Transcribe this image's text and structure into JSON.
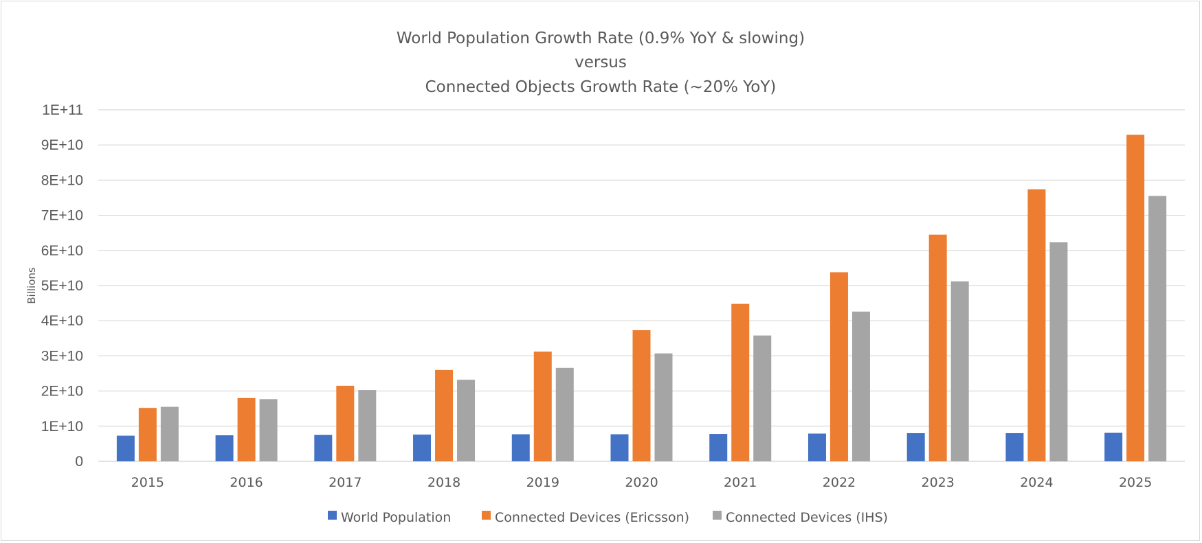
{
  "chart_data": {
    "type": "bar",
    "title_lines": [
      "World Population Growth Rate (0.9% YoY & slowing)",
      "versus",
      "Connected Objects Growth Rate (~20% YoY)"
    ],
    "xlabel": "",
    "ylabel": "Billions",
    "ylim": [
      0,
      100000000000
    ],
    "yticks": [
      0,
      10000000000,
      20000000000,
      30000000000,
      40000000000,
      50000000000,
      60000000000,
      70000000000,
      80000000000,
      90000000000,
      100000000000
    ],
    "ytick_labels": [
      "0",
      "1E+10",
      "2E+10",
      "3E+10",
      "4E+10",
      "5E+10",
      "6E+10",
      "7E+10",
      "8E+10",
      "9E+10",
      "1E+11"
    ],
    "grid": true,
    "legend_position": "bottom",
    "categories": [
      "2015",
      "2016",
      "2017",
      "2018",
      "2019",
      "2020",
      "2021",
      "2022",
      "2023",
      "2024",
      "2025"
    ],
    "series": [
      {
        "name": "World Population",
        "color": "#4472C4",
        "values": [
          7300000000,
          7400000000,
          7500000000,
          7600000000,
          7700000000,
          7700000000,
          7800000000,
          7900000000,
          8000000000,
          8000000000,
          8100000000
        ]
      },
      {
        "name": "Connected Devices (Ericsson)",
        "color": "#ED7D31",
        "values": [
          15200000000,
          18000000000,
          21500000000,
          26000000000,
          31200000000,
          37300000000,
          44800000000,
          53800000000,
          64500000000,
          77400000000,
          92900000000
        ]
      },
      {
        "name": "Connected Devices (IHS)",
        "color": "#A5A5A5",
        "values": [
          15500000000,
          17700000000,
          20300000000,
          23200000000,
          26600000000,
          30700000000,
          35800000000,
          42600000000,
          51200000000,
          62300000000,
          75500000000
        ]
      }
    ]
  }
}
